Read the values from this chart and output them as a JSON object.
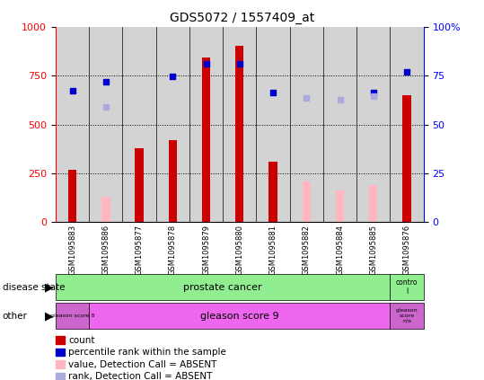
{
  "title": "GDS5072 / 1557409_at",
  "samples": [
    "GSM1095883",
    "GSM1095886",
    "GSM1095877",
    "GSM1095878",
    "GSM1095879",
    "GSM1095880",
    "GSM1095881",
    "GSM1095882",
    "GSM1095884",
    "GSM1095885",
    "GSM1095876"
  ],
  "count_values": [
    270,
    null,
    380,
    420,
    840,
    900,
    310,
    null,
    null,
    null,
    650
  ],
  "count_absent": [
    null,
    130,
    null,
    null,
    null,
    null,
    null,
    210,
    165,
    190,
    null
  ],
  "percentile_present": [
    670,
    720,
    null,
    745,
    810,
    810,
    665,
    null,
    null,
    665,
    770
  ],
  "percentile_absent": [
    null,
    590,
    null,
    null,
    null,
    null,
    null,
    635,
    625,
    645,
    null
  ],
  "ylim_left": [
    0,
    1000
  ],
  "ylim_right": [
    0,
    100
  ],
  "yticks_left": [
    0,
    250,
    500,
    750,
    1000
  ],
  "yticks_right": [
    0,
    25,
    50,
    75,
    100
  ],
  "bar_color_red": "#cc0000",
  "bar_color_pink": "#ffb6c1",
  "dot_color_blue": "#0000cc",
  "dot_color_lightblue": "#aaaadd",
  "bg_color": "#d3d3d3",
  "legend_items": [
    {
      "label": "count",
      "color": "#cc0000"
    },
    {
      "label": "percentile rank within the sample",
      "color": "#0000cc"
    },
    {
      "label": "value, Detection Call = ABSENT",
      "color": "#ffb6c1"
    },
    {
      "label": "rank, Detection Call = ABSENT",
      "color": "#aaaadd"
    }
  ]
}
